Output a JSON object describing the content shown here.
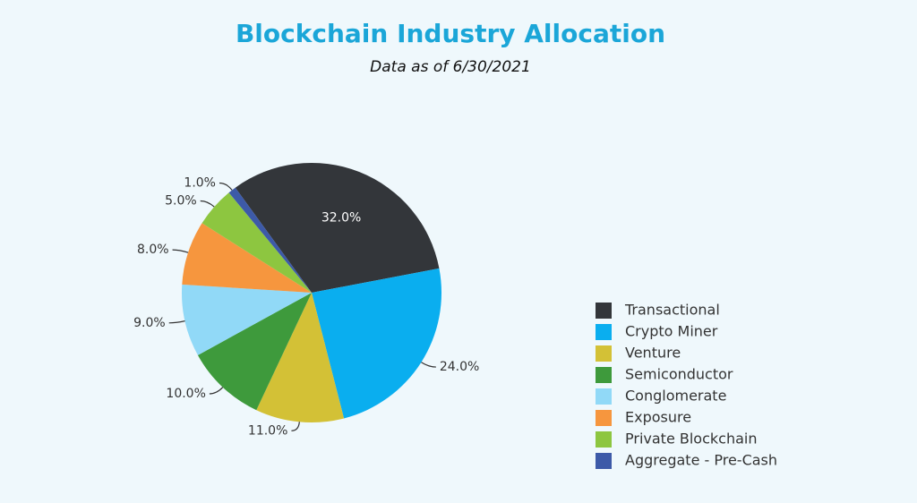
{
  "chart_data": {
    "type": "pie",
    "title": "Blockchain Industry Allocation",
    "subtitle": "Data as of 6/30/2021",
    "categories": [
      "Transactional",
      "Crypto Miner",
      "Venture",
      "Semiconductor",
      "Conglomerate",
      "Exposure",
      "Private Blockchain",
      "Aggregate - Pre-Cash"
    ],
    "values": [
      32,
      24,
      11,
      10,
      9,
      8,
      5,
      1
    ],
    "value_labels": [
      "32.0%",
      "24.0%",
      "11.0%",
      "10.0%",
      "9.0%",
      "8.0%",
      "5.0%",
      "1.0%"
    ],
    "colors": [
      "#33363a",
      "#0aaeef",
      "#d3c136",
      "#3e9a3c",
      "#91d9f7",
      "#f6963e",
      "#8dc640",
      "#3d5aa8"
    ],
    "legend": "right"
  }
}
